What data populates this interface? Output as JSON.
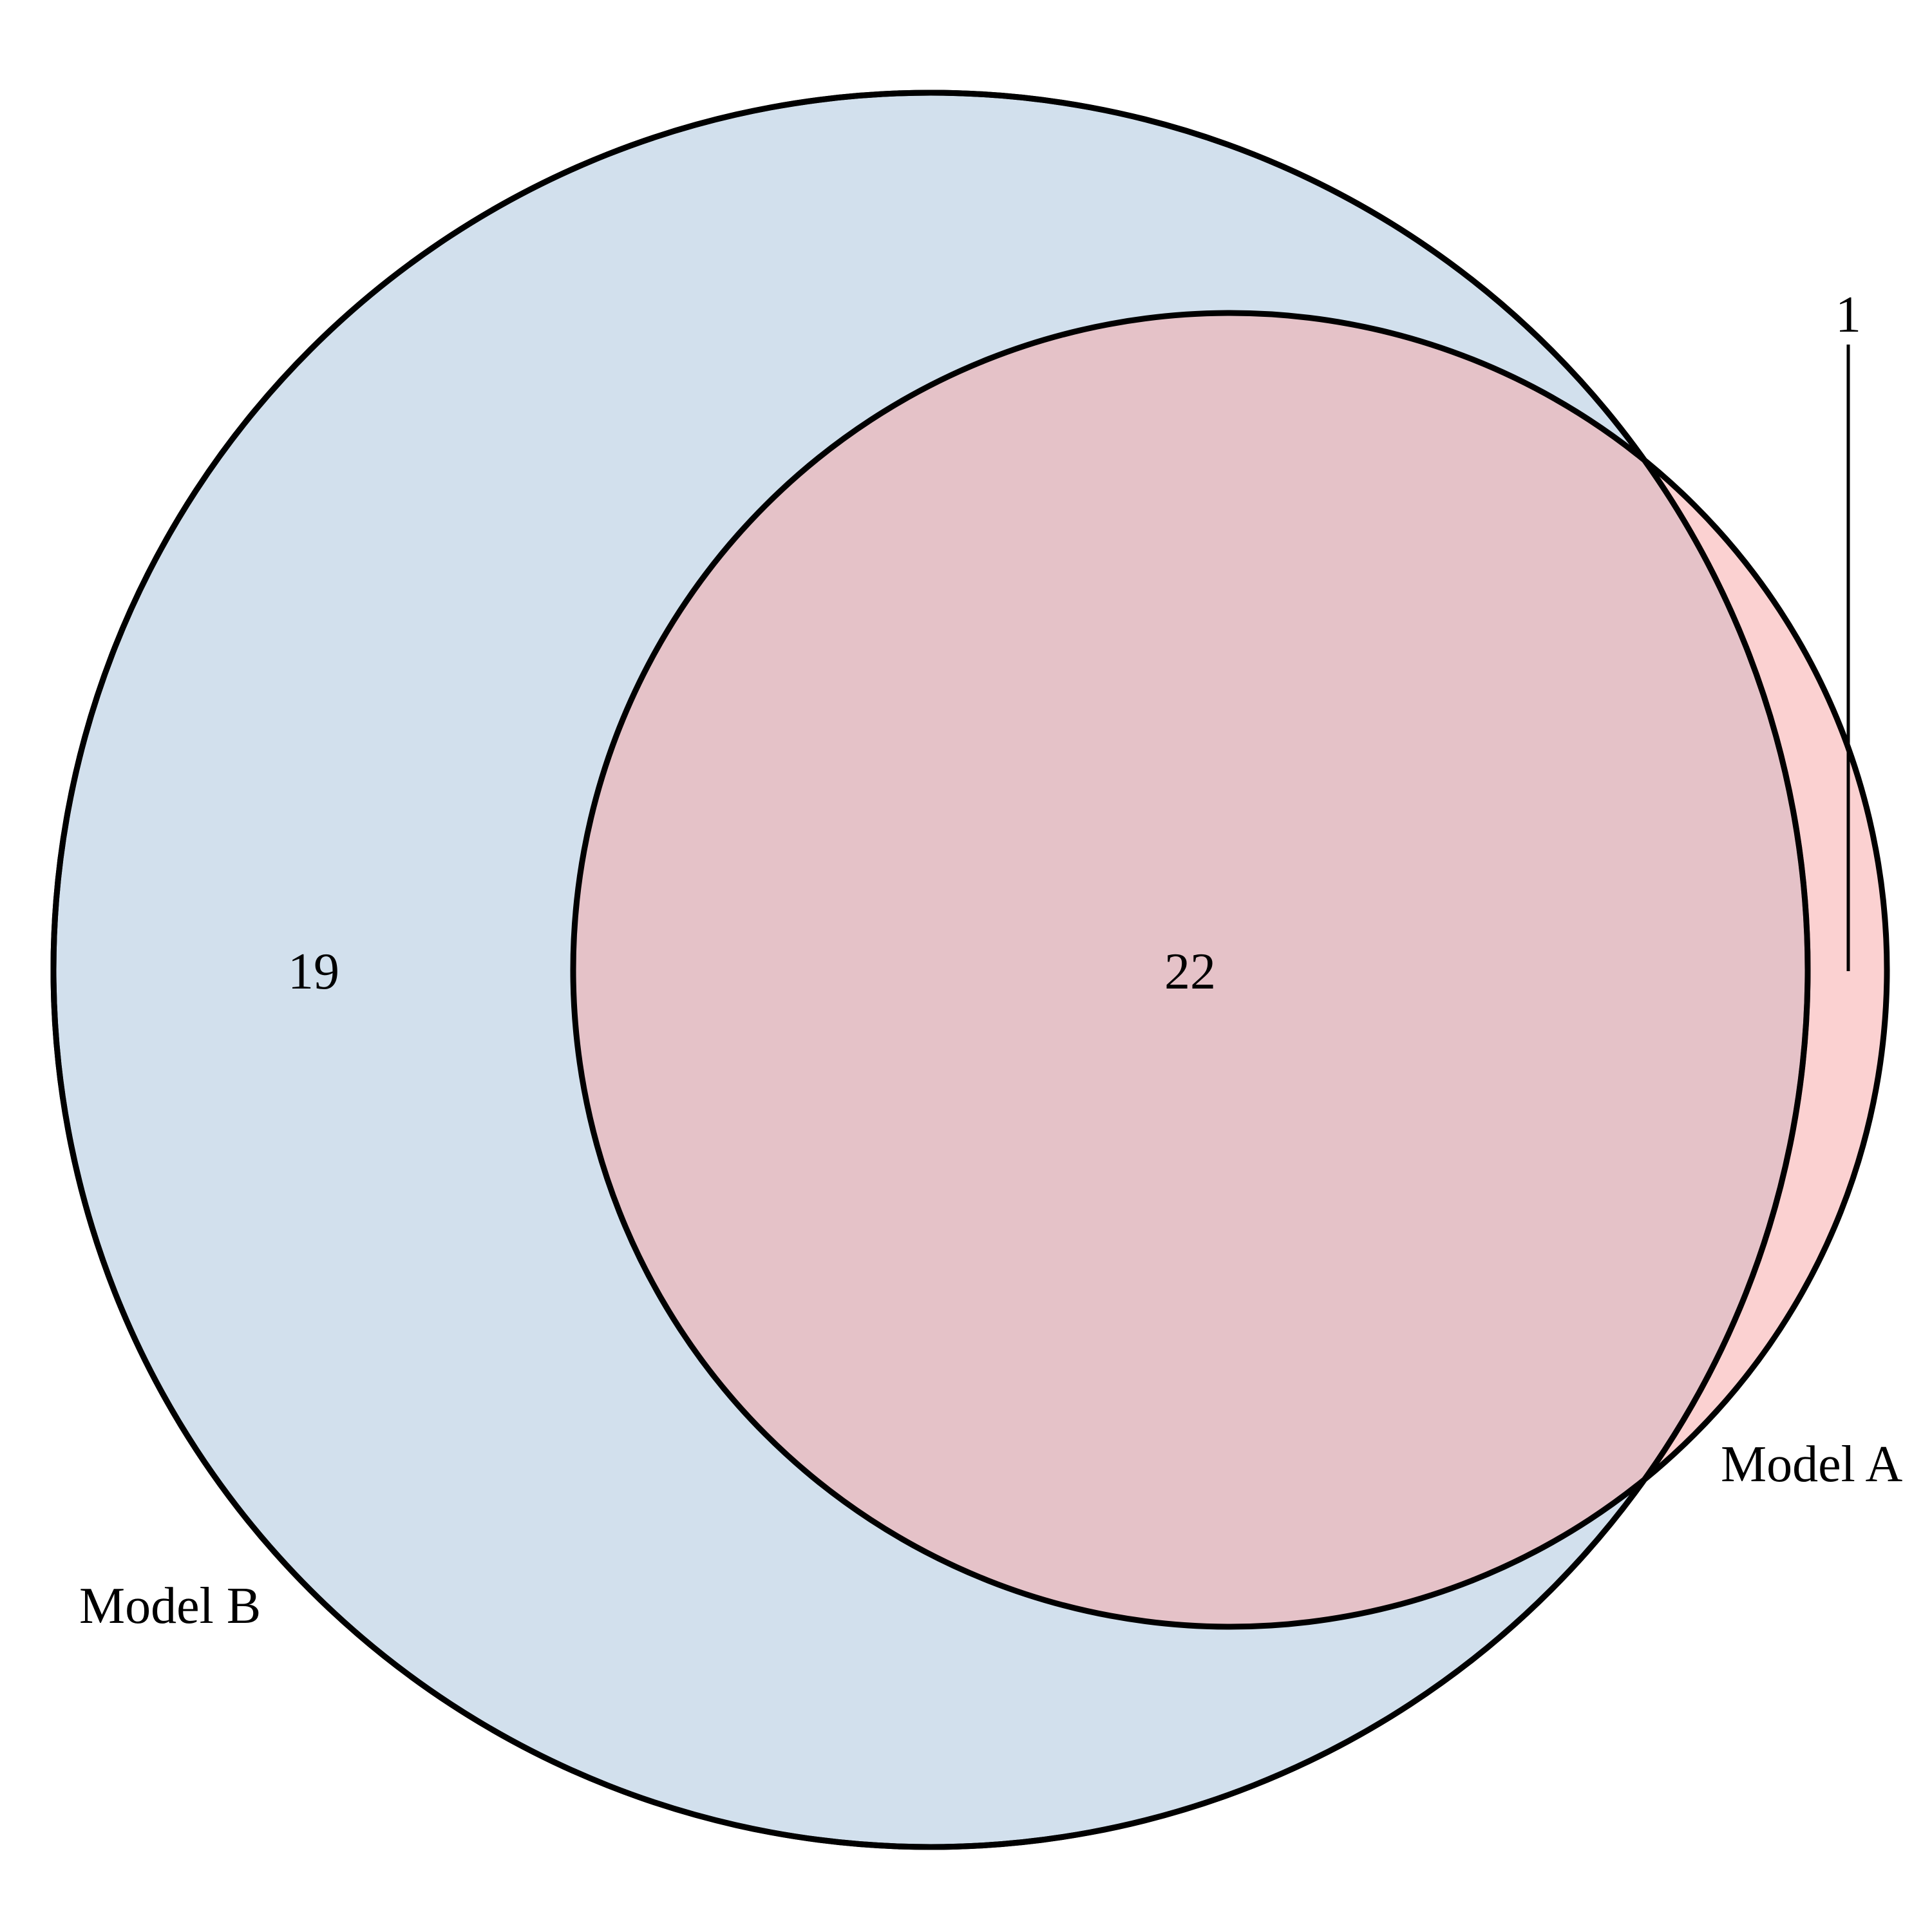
{
  "sets": [
    {
      "name": "Model B",
      "color": "#a6c1dc"
    },
    {
      "name": "Model A",
      "color": "#f8a3a3"
    }
  ],
  "regions": {
    "only_b": "19",
    "both": "22",
    "only_a": "1"
  },
  "outline_color": "#000000"
}
